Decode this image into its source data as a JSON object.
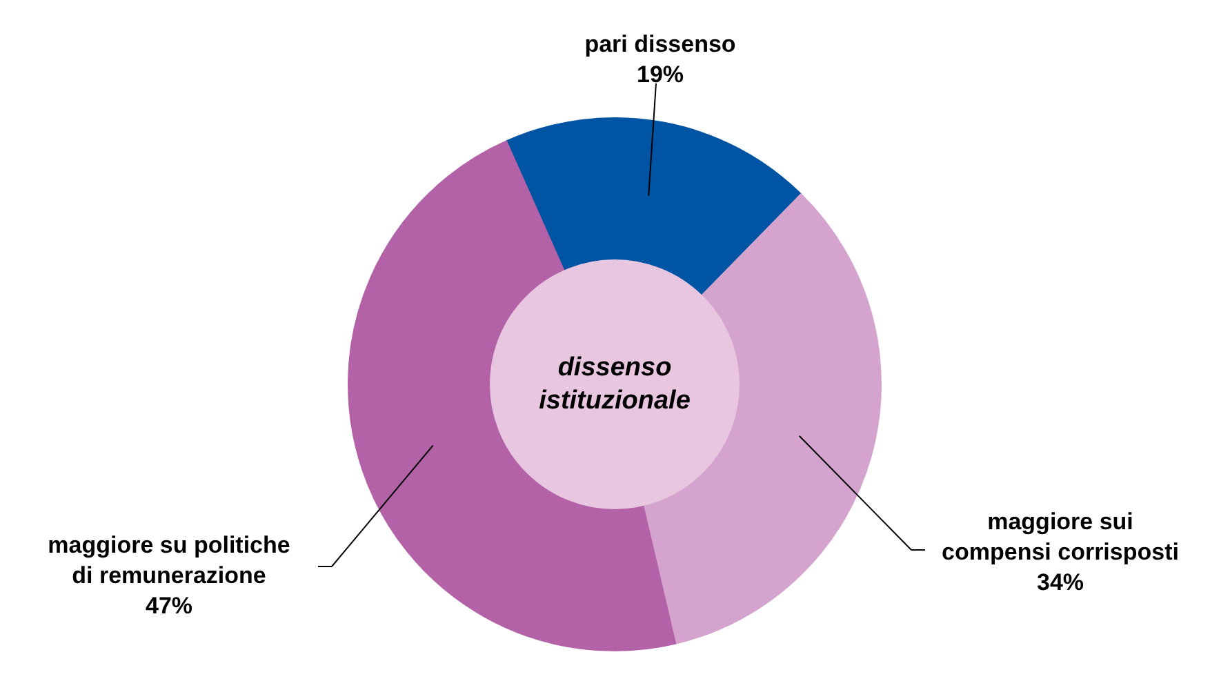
{
  "chart_data": {
    "type": "donut",
    "categories": [
      "pari dissenso",
      "maggiore sui compensi corrisposti",
      "maggiore su politiche di remunerazione"
    ],
    "values": [
      19,
      34,
      47
    ],
    "colors": [
      "#0054a4",
      "#d4a4ce",
      "#b462a8"
    ],
    "value_labels": [
      "19%",
      "34%",
      "47%"
    ],
    "annotations": [
      "dissenso istituzionale"
    ]
  }
}
